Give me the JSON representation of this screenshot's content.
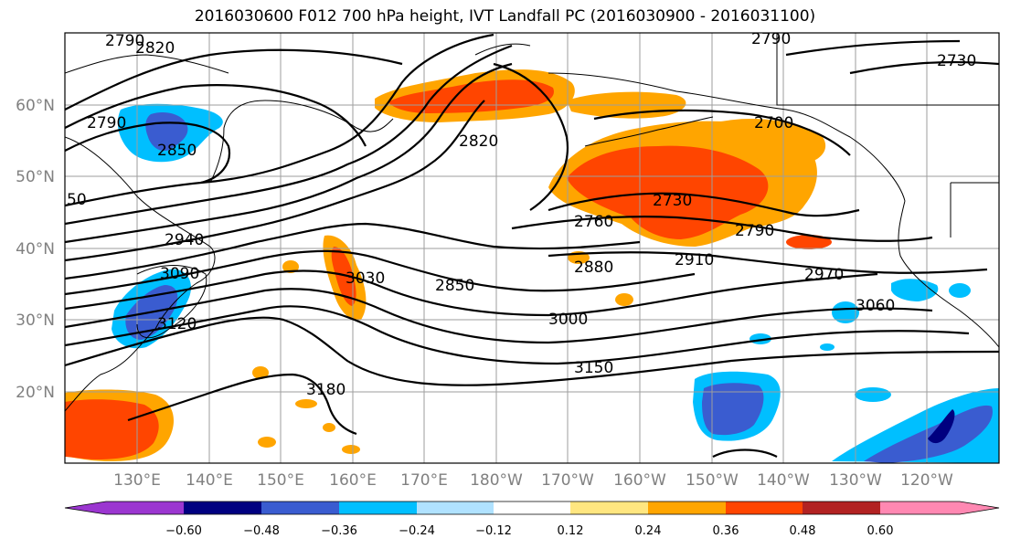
{
  "title": "2016030600 F012 700 hPa height, IVT Landfall PC (2016030900 - 2016031100)",
  "map": {
    "lon_labels": [
      "130°E",
      "140°E",
      "150°E",
      "160°E",
      "170°E",
      "180°W",
      "170°W",
      "160°W",
      "150°W",
      "140°W",
      "130°W",
      "120°W"
    ],
    "lat_labels": [
      "60°N",
      "50°N",
      "40°N",
      "30°N",
      "20°N"
    ],
    "contour_color": "#000000",
    "grid_color": "#9e9e9e",
    "contour_labels": [
      "2790",
      "2820",
      "2790",
      "2730",
      "2700",
      "2820",
      "2790",
      "2850",
      "50",
      "2940",
      "2730",
      "2760",
      "2790",
      "2880",
      "2910",
      "2970",
      "2850",
      "3000",
      "3060",
      "3090",
      "3030",
      "3120",
      "3150",
      "3180"
    ]
  },
  "colorbar": {
    "tick_labels": [
      "−0.60",
      "−0.48",
      "−0.36",
      "−0.24",
      "−0.12",
      "0.12",
      "0.24",
      "0.36",
      "0.48",
      "0.60"
    ],
    "colors": [
      "#9b36d0",
      "#000080",
      "#3a5cd0",
      "#00bfff",
      "#b0e2ff",
      "#ffffff",
      "#ffe680",
      "#ffa500",
      "#ff4500",
      "#b22222",
      "#ff88b2"
    ]
  }
}
